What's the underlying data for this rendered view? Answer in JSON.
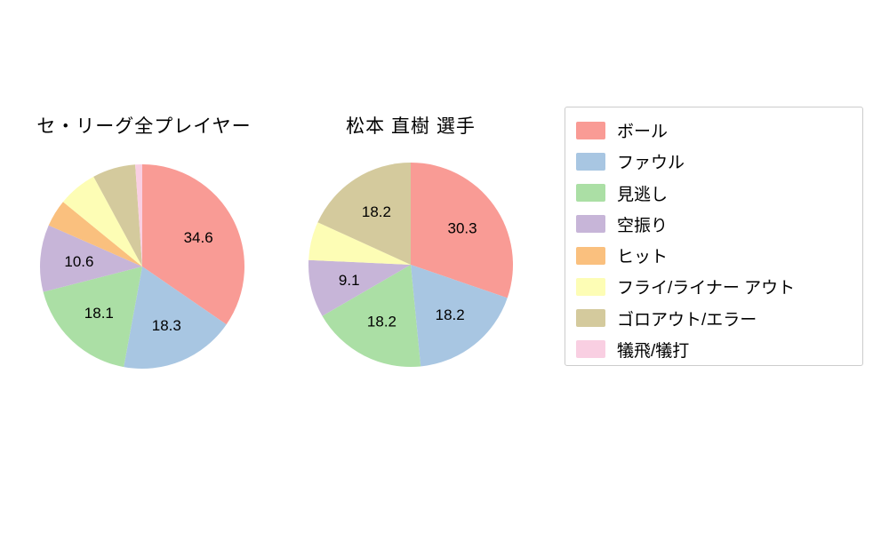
{
  "palette": [
    "#f99b95",
    "#a8c6e2",
    "#abdfa5",
    "#c7b5d8",
    "#fac07e",
    "#fdfdb5",
    "#d4ca9d",
    "#f9cfe2"
  ],
  "category_keys": [
    "ball",
    "foul",
    "called-strike",
    "swinging-strike",
    "hit",
    "fly-liner-out",
    "ground-out-error",
    "sacrifice-fly-bunt"
  ],
  "legend": {
    "items": [
      {
        "label": "ボール",
        "color": "#f99b95"
      },
      {
        "label": "ファウル",
        "color": "#a8c6e2"
      },
      {
        "label": "見逃し",
        "color": "#abdfa5"
      },
      {
        "label": "空振り",
        "color": "#c7b5d8"
      },
      {
        "label": "ヒット",
        "color": "#fac07e"
      },
      {
        "label": "フライ/ライナー アウト",
        "color": "#fdfdb5"
      },
      {
        "label": "ゴロアウト/エラー",
        "color": "#d4ca9d"
      },
      {
        "label": "犠飛/犠打",
        "color": "#f9cfe2"
      }
    ]
  },
  "chart_data": [
    {
      "type": "pie",
      "title": "セ・リーグ全プレイヤー",
      "start_angle": "top",
      "direction": "clockwise",
      "label_min_value": 8,
      "categories": [
        "ボール",
        "ファウル",
        "見逃し",
        "空振り",
        "ヒット",
        "フライ/ライナー アウト",
        "ゴロアウト/エラー",
        "犠飛/犠打"
      ],
      "values": [
        34.6,
        18.3,
        18.1,
        10.6,
        4.3,
        6.2,
        6.8,
        1.1
      ],
      "shown_value_labels": [
        "34.6",
        "18.3",
        "18.1",
        "10.6"
      ]
    },
    {
      "type": "pie",
      "title": "松本 直樹  選手",
      "start_angle": "top",
      "direction": "clockwise",
      "label_min_value": 8,
      "categories": [
        "ボール",
        "ファウル",
        "見逃し",
        "空振り",
        "ヒット",
        "フライ/ライナー アウト",
        "ゴロアウト/エラー",
        "犠飛/犠打"
      ],
      "values": [
        30.3,
        18.2,
        18.2,
        9.1,
        0,
        6.1,
        18.2,
        0
      ],
      "shown_value_labels": [
        "30.3",
        "18.2",
        "18.2",
        "9.1",
        "18.2"
      ]
    }
  ]
}
